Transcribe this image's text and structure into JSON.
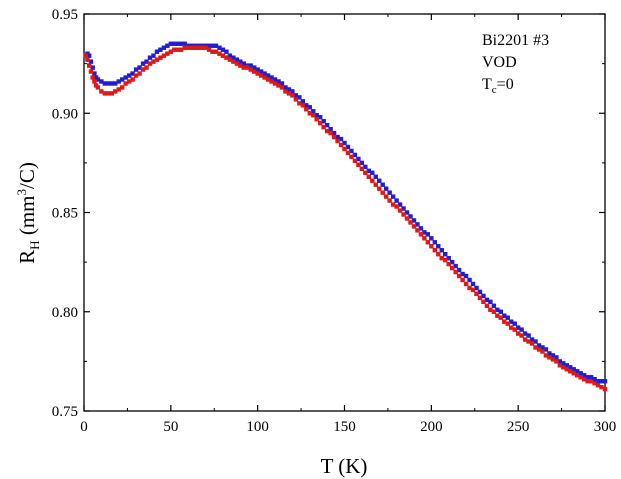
{
  "chart_data": {
    "type": "scatter",
    "title": "",
    "xlabel": "T (K)",
    "ylabel": {
      "main": "R",
      "sub": "H",
      "unit_pre": " (mm",
      "sup": "3",
      "unit_post": "/C)"
    },
    "xlim": [
      0,
      300
    ],
    "ylim": [
      0.75,
      0.95
    ],
    "x_ticks": [
      0,
      50,
      100,
      150,
      200,
      250,
      300
    ],
    "y_ticks": [
      0.75,
      0.8,
      0.85,
      0.9,
      0.95
    ],
    "x_tick_labels": [
      "0",
      "50",
      "100",
      "150",
      "200",
      "250",
      "300"
    ],
    "y_tick_labels": [
      "0.75",
      "0.80",
      "0.85",
      "0.90",
      "0.95"
    ],
    "grid": false,
    "annotations": {
      "sample": "Bi2201 #3",
      "process": "VOD",
      "tc": {
        "main": "T",
        "sub": "c",
        "rest": "=0"
      }
    },
    "series": [
      {
        "color": "#1f1fd0",
        "marker": "square",
        "points": [
          [
            2,
            0.93
          ],
          [
            3,
            0.929
          ],
          [
            4,
            0.926
          ],
          [
            5,
            0.923
          ],
          [
            6,
            0.92
          ],
          [
            7,
            0.918
          ],
          [
            8,
            0.917
          ],
          [
            10,
            0.916
          ],
          [
            12,
            0.915
          ],
          [
            14,
            0.915
          ],
          [
            16,
            0.915
          ],
          [
            18,
            0.915
          ],
          [
            20,
            0.916
          ],
          [
            22,
            0.917
          ],
          [
            24,
            0.918
          ],
          [
            26,
            0.919
          ],
          [
            28,
            0.92
          ],
          [
            30,
            0.922
          ],
          [
            32,
            0.923
          ],
          [
            34,
            0.925
          ],
          [
            36,
            0.926
          ],
          [
            38,
            0.928
          ],
          [
            40,
            0.929
          ],
          [
            42,
            0.931
          ],
          [
            44,
            0.932
          ],
          [
            46,
            0.933
          ],
          [
            48,
            0.934
          ],
          [
            50,
            0.935
          ],
          [
            52,
            0.935
          ],
          [
            54,
            0.935
          ],
          [
            56,
            0.935
          ],
          [
            58,
            0.935
          ],
          [
            60,
            0.934
          ],
          [
            62,
            0.934
          ],
          [
            64,
            0.934
          ],
          [
            66,
            0.934
          ],
          [
            68,
            0.934
          ],
          [
            70,
            0.934
          ],
          [
            72,
            0.934
          ],
          [
            74,
            0.934
          ],
          [
            76,
            0.934
          ],
          [
            78,
            0.933
          ],
          [
            80,
            0.932
          ],
          [
            82,
            0.931
          ],
          [
            84,
            0.929
          ],
          [
            86,
            0.928
          ],
          [
            88,
            0.927
          ],
          [
            90,
            0.926
          ],
          [
            92,
            0.925
          ],
          [
            94,
            0.924
          ],
          [
            96,
            0.924
          ],
          [
            98,
            0.923
          ],
          [
            100,
            0.922
          ],
          [
            102,
            0.921
          ],
          [
            104,
            0.92
          ],
          [
            106,
            0.919
          ],
          [
            108,
            0.918
          ],
          [
            110,
            0.917
          ],
          [
            112,
            0.916
          ],
          [
            114,
            0.915
          ],
          [
            116,
            0.913
          ],
          [
            118,
            0.912
          ],
          [
            120,
            0.911
          ],
          [
            122,
            0.909
          ],
          [
            124,
            0.908
          ],
          [
            126,
            0.906
          ],
          [
            128,
            0.904
          ],
          [
            130,
            0.903
          ],
          [
            132,
            0.901
          ],
          [
            134,
            0.899
          ],
          [
            136,
            0.898
          ],
          [
            138,
            0.896
          ],
          [
            140,
            0.894
          ],
          [
            142,
            0.892
          ],
          [
            144,
            0.89
          ],
          [
            146,
            0.888
          ],
          [
            148,
            0.887
          ],
          [
            150,
            0.885
          ],
          [
            152,
            0.883
          ],
          [
            154,
            0.881
          ],
          [
            156,
            0.879
          ],
          [
            158,
            0.877
          ],
          [
            160,
            0.875
          ],
          [
            162,
            0.873
          ],
          [
            164,
            0.871
          ],
          [
            166,
            0.87
          ],
          [
            168,
            0.868
          ],
          [
            170,
            0.866
          ],
          [
            172,
            0.864
          ],
          [
            174,
            0.862
          ],
          [
            176,
            0.86
          ],
          [
            178,
            0.858
          ],
          [
            180,
            0.856
          ],
          [
            182,
            0.854
          ],
          [
            184,
            0.852
          ],
          [
            186,
            0.85
          ],
          [
            188,
            0.848
          ],
          [
            190,
            0.846
          ],
          [
            192,
            0.844
          ],
          [
            194,
            0.842
          ],
          [
            196,
            0.84
          ],
          [
            198,
            0.839
          ],
          [
            200,
            0.837
          ],
          [
            202,
            0.835
          ],
          [
            204,
            0.833
          ],
          [
            206,
            0.831
          ],
          [
            208,
            0.829
          ],
          [
            210,
            0.827
          ],
          [
            212,
            0.825
          ],
          [
            214,
            0.823
          ],
          [
            216,
            0.821
          ],
          [
            218,
            0.819
          ],
          [
            220,
            0.818
          ],
          [
            222,
            0.816
          ],
          [
            224,
            0.814
          ],
          [
            226,
            0.812
          ],
          [
            228,
            0.81
          ],
          [
            230,
            0.808
          ],
          [
            232,
            0.806
          ],
          [
            234,
            0.805
          ],
          [
            236,
            0.803
          ],
          [
            238,
            0.801
          ],
          [
            240,
            0.8
          ],
          [
            242,
            0.798
          ],
          [
            244,
            0.797
          ],
          [
            246,
            0.795
          ],
          [
            248,
            0.794
          ],
          [
            250,
            0.792
          ],
          [
            252,
            0.791
          ],
          [
            254,
            0.789
          ],
          [
            256,
            0.788
          ],
          [
            258,
            0.786
          ],
          [
            260,
            0.785
          ],
          [
            262,
            0.783
          ],
          [
            264,
            0.782
          ],
          [
            266,
            0.781
          ],
          [
            268,
            0.779
          ],
          [
            270,
            0.778
          ],
          [
            272,
            0.777
          ],
          [
            274,
            0.775
          ],
          [
            276,
            0.774
          ],
          [
            278,
            0.773
          ],
          [
            280,
            0.772
          ],
          [
            282,
            0.771
          ],
          [
            284,
            0.77
          ],
          [
            286,
            0.769
          ],
          [
            288,
            0.768
          ],
          [
            290,
            0.767
          ],
          [
            292,
            0.767
          ],
          [
            294,
            0.766
          ],
          [
            296,
            0.765
          ],
          [
            298,
            0.765
          ],
          [
            300,
            0.765
          ]
        ]
      },
      {
        "color": "#e01818",
        "marker": "square",
        "points": [
          [
            1,
            0.929
          ],
          [
            2,
            0.927
          ],
          [
            3,
            0.924
          ],
          [
            4,
            0.921
          ],
          [
            5,
            0.918
          ],
          [
            6,
            0.916
          ],
          [
            7,
            0.914
          ],
          [
            8,
            0.913
          ],
          [
            10,
            0.911
          ],
          [
            12,
            0.91
          ],
          [
            14,
            0.91
          ],
          [
            16,
            0.91
          ],
          [
            18,
            0.911
          ],
          [
            20,
            0.912
          ],
          [
            22,
            0.913
          ],
          [
            24,
            0.915
          ],
          [
            26,
            0.916
          ],
          [
            28,
            0.917
          ],
          [
            30,
            0.919
          ],
          [
            32,
            0.92
          ],
          [
            34,
            0.922
          ],
          [
            36,
            0.923
          ],
          [
            38,
            0.925
          ],
          [
            40,
            0.926
          ],
          [
            42,
            0.927
          ],
          [
            44,
            0.928
          ],
          [
            46,
            0.929
          ],
          [
            48,
            0.93
          ],
          [
            50,
            0.931
          ],
          [
            52,
            0.932
          ],
          [
            54,
            0.932
          ],
          [
            56,
            0.932
          ],
          [
            58,
            0.933
          ],
          [
            60,
            0.933
          ],
          [
            62,
            0.933
          ],
          [
            64,
            0.933
          ],
          [
            66,
            0.933
          ],
          [
            68,
            0.933
          ],
          [
            70,
            0.933
          ],
          [
            72,
            0.932
          ],
          [
            74,
            0.931
          ],
          [
            76,
            0.931
          ],
          [
            78,
            0.93
          ],
          [
            80,
            0.929
          ],
          [
            82,
            0.928
          ],
          [
            84,
            0.927
          ],
          [
            86,
            0.926
          ],
          [
            88,
            0.925
          ],
          [
            90,
            0.924
          ],
          [
            92,
            0.923
          ],
          [
            94,
            0.923
          ],
          [
            96,
            0.922
          ],
          [
            98,
            0.921
          ],
          [
            100,
            0.92
          ],
          [
            102,
            0.919
          ],
          [
            104,
            0.918
          ],
          [
            106,
            0.917
          ],
          [
            108,
            0.916
          ],
          [
            110,
            0.915
          ],
          [
            112,
            0.914
          ],
          [
            114,
            0.913
          ],
          [
            116,
            0.911
          ],
          [
            118,
            0.91
          ],
          [
            120,
            0.909
          ],
          [
            122,
            0.907
          ],
          [
            124,
            0.905
          ],
          [
            126,
            0.904
          ],
          [
            128,
            0.902
          ],
          [
            130,
            0.9
          ],
          [
            132,
            0.899
          ],
          [
            134,
            0.897
          ],
          [
            136,
            0.895
          ],
          [
            138,
            0.893
          ],
          [
            140,
            0.891
          ],
          [
            142,
            0.89
          ],
          [
            144,
            0.888
          ],
          [
            146,
            0.886
          ],
          [
            148,
            0.884
          ],
          [
            150,
            0.882
          ],
          [
            152,
            0.88
          ],
          [
            154,
            0.878
          ],
          [
            156,
            0.876
          ],
          [
            158,
            0.874
          ],
          [
            160,
            0.872
          ],
          [
            162,
            0.87
          ],
          [
            164,
            0.868
          ],
          [
            166,
            0.866
          ],
          [
            168,
            0.864
          ],
          [
            170,
            0.862
          ],
          [
            172,
            0.86
          ],
          [
            174,
            0.858
          ],
          [
            176,
            0.856
          ],
          [
            178,
            0.854
          ],
          [
            180,
            0.853
          ],
          [
            182,
            0.851
          ],
          [
            184,
            0.849
          ],
          [
            186,
            0.847
          ],
          [
            188,
            0.845
          ],
          [
            190,
            0.843
          ],
          [
            192,
            0.841
          ],
          [
            194,
            0.839
          ],
          [
            196,
            0.837
          ],
          [
            198,
            0.835
          ],
          [
            200,
            0.833
          ],
          [
            202,
            0.831
          ],
          [
            204,
            0.829
          ],
          [
            206,
            0.827
          ],
          [
            208,
            0.826
          ],
          [
            210,
            0.824
          ],
          [
            212,
            0.822
          ],
          [
            214,
            0.82
          ],
          [
            216,
            0.818
          ],
          [
            218,
            0.816
          ],
          [
            220,
            0.814
          ],
          [
            222,
            0.812
          ],
          [
            224,
            0.811
          ],
          [
            226,
            0.809
          ],
          [
            228,
            0.807
          ],
          [
            230,
            0.805
          ],
          [
            232,
            0.803
          ],
          [
            234,
            0.801
          ],
          [
            236,
            0.8
          ],
          [
            238,
            0.798
          ],
          [
            240,
            0.797
          ],
          [
            242,
            0.795
          ],
          [
            244,
            0.794
          ],
          [
            246,
            0.792
          ],
          [
            248,
            0.791
          ],
          [
            250,
            0.789
          ],
          [
            252,
            0.788
          ],
          [
            254,
            0.786
          ],
          [
            256,
            0.785
          ],
          [
            258,
            0.784
          ],
          [
            260,
            0.782
          ],
          [
            262,
            0.781
          ],
          [
            264,
            0.78
          ],
          [
            266,
            0.778
          ],
          [
            268,
            0.777
          ],
          [
            270,
            0.776
          ],
          [
            272,
            0.775
          ],
          [
            274,
            0.773
          ],
          [
            276,
            0.772
          ],
          [
            278,
            0.771
          ],
          [
            280,
            0.77
          ],
          [
            282,
            0.769
          ],
          [
            284,
            0.768
          ],
          [
            286,
            0.767
          ],
          [
            288,
            0.766
          ],
          [
            290,
            0.765
          ],
          [
            292,
            0.765
          ],
          [
            294,
            0.764
          ],
          [
            296,
            0.763
          ],
          [
            298,
            0.762
          ],
          [
            300,
            0.761
          ]
        ]
      }
    ]
  }
}
